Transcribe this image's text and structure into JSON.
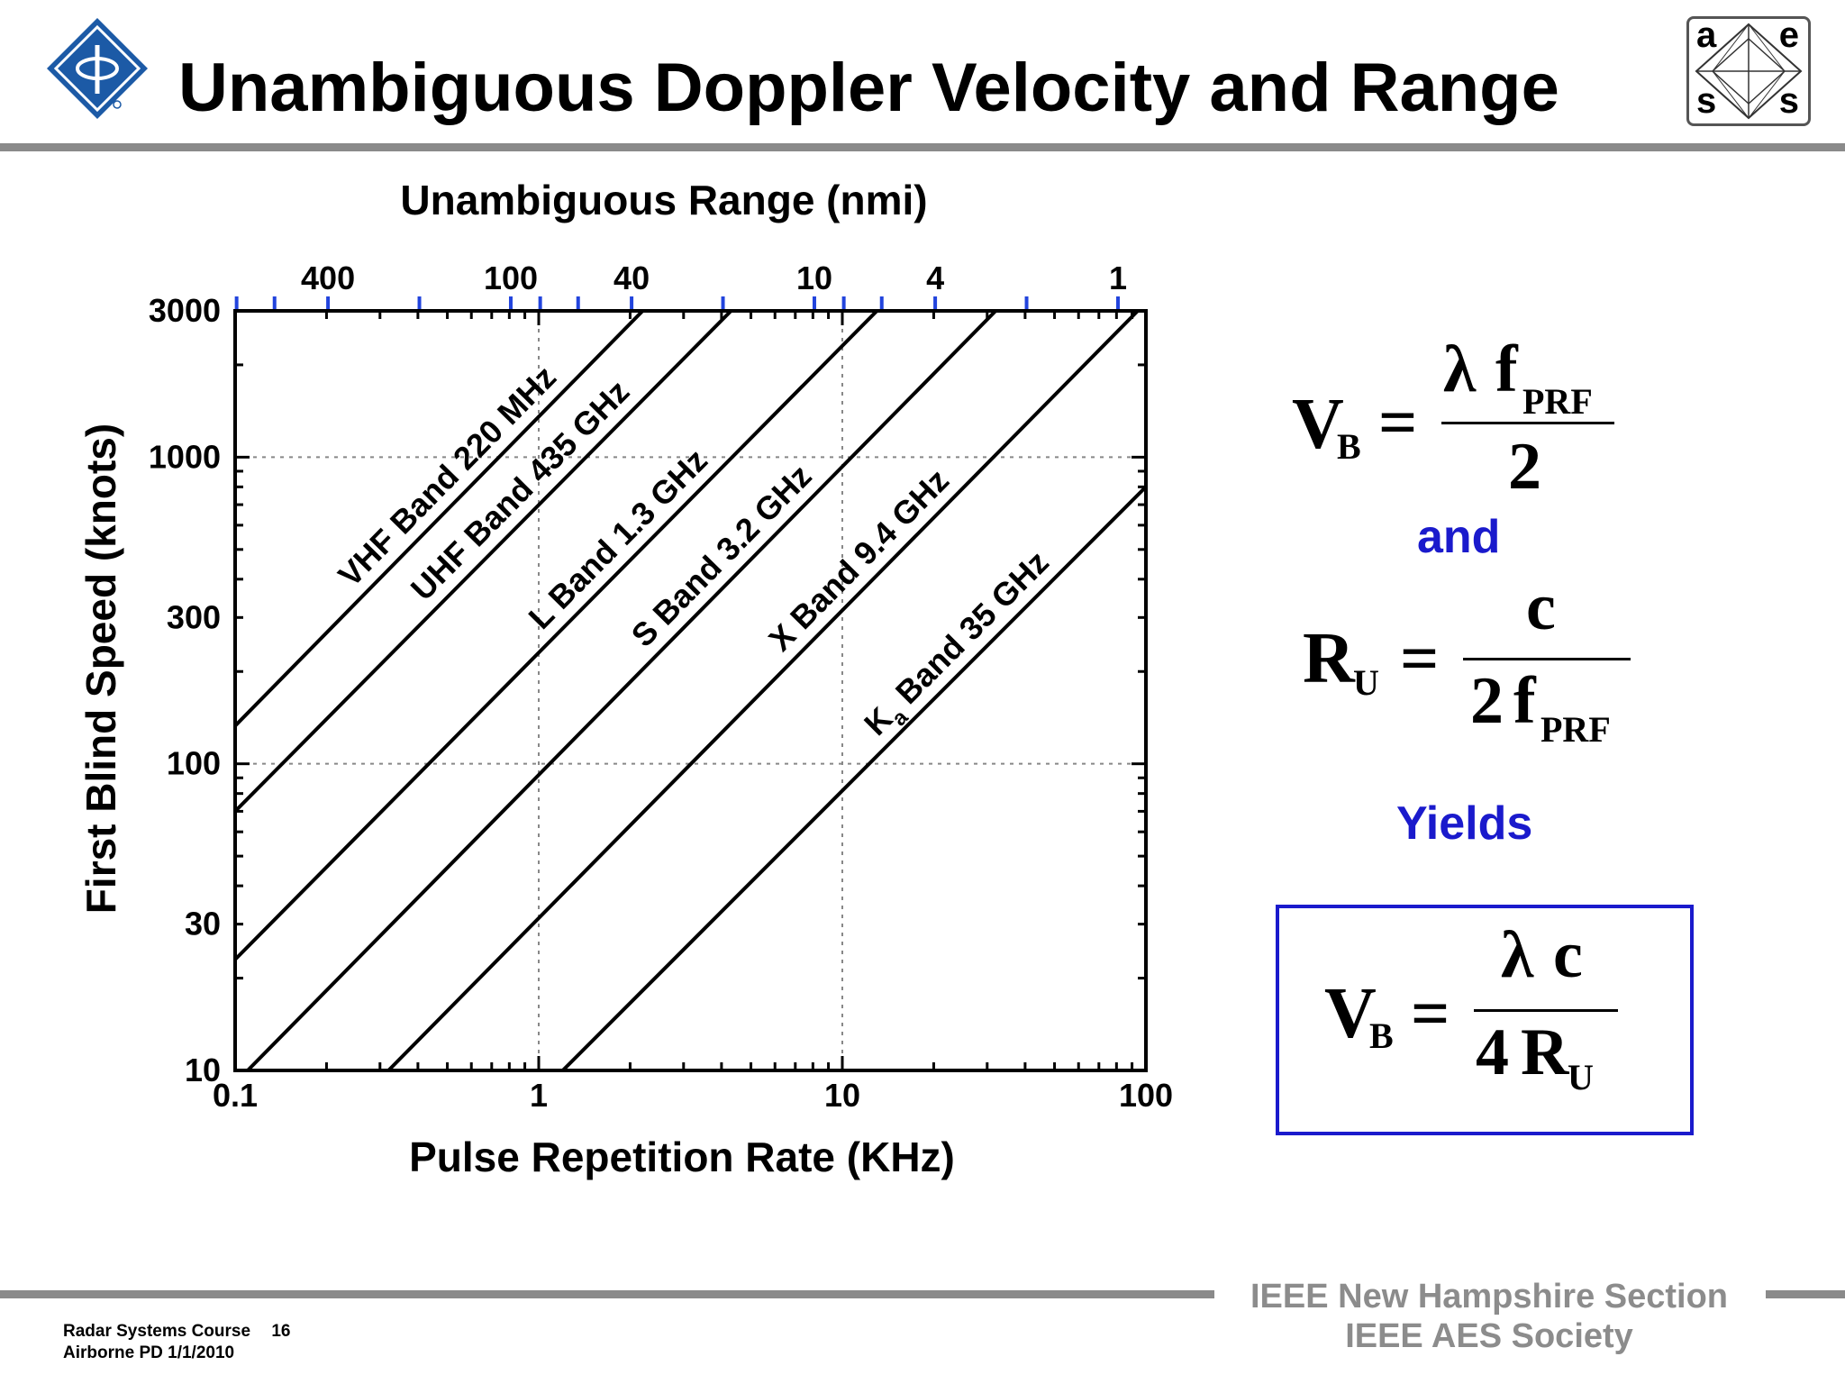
{
  "slide": {
    "title": "Unambiguous Doppler Velocity and Range",
    "left_logo": "ieee-diamond-logo",
    "right_logo": {
      "icon": "aess-logo",
      "letters": [
        "a",
        "e",
        "s",
        "s"
      ]
    }
  },
  "chart_data": {
    "type": "line",
    "top_axis_title": "Unambiguous Range (nmi)",
    "top_tick_labels": [
      "400",
      "100",
      "40",
      "10",
      "4",
      "1"
    ],
    "top_tick_values_nmi": [
      400,
      100,
      40,
      10,
      4,
      1
    ],
    "xlabel": "Pulse Repetition Rate (KHz)",
    "ylabel": "First Blind Speed (knots)",
    "x_scale": "log",
    "y_scale": "log",
    "xlim": [
      0.1,
      100
    ],
    "ylim": [
      10,
      3000
    ],
    "x_tick_labels": [
      "0.1",
      "1",
      "10",
      "100"
    ],
    "x_ticks": [
      0.1,
      1,
      10,
      100
    ],
    "y_tick_labels": [
      "10",
      "30",
      "100",
      "300",
      "1000",
      "3000"
    ],
    "y_ticks": [
      10,
      30,
      100,
      300,
      1000,
      3000
    ],
    "grid": {
      "dashed_x": [
        1,
        10
      ],
      "dashed_y": [
        100,
        1000
      ]
    },
    "series": [
      {
        "name": "VHF Band 220 MHz",
        "label_main": "VHF Band 220 MHz",
        "label_sub": "",
        "label_tail": "",
        "x": [
          0.1,
          2.2
        ],
        "y": [
          133,
          3000
        ]
      },
      {
        "name": "UHF Band 435 GHz",
        "label_main": "UHF Band 435 GHz",
        "label_sub": "",
        "label_tail": "",
        "x": [
          0.1,
          4.3
        ],
        "y": [
          70,
          3000
        ]
      },
      {
        "name": "L Band 1.3 GHz",
        "label_main": "L Band 1.3 GHz",
        "label_sub": "",
        "label_tail": "",
        "x": [
          0.1,
          13
        ],
        "y": [
          23,
          3000
        ]
      },
      {
        "name": "S Band 3.2 GHz",
        "label_main": "S Band 3.2 GHz",
        "label_sub": "",
        "label_tail": "",
        "x": [
          0.11,
          32
        ],
        "y": [
          10,
          3000
        ]
      },
      {
        "name": "X Band 9.4 GHz",
        "label_main": "X Band 9.4 GHz",
        "label_sub": "",
        "label_tail": "",
        "x": [
          0.32,
          94
        ],
        "y": [
          10,
          3000
        ]
      },
      {
        "name": "Ka Band 35 GHz",
        "label_main": "K",
        "label_sub": "a",
        "label_tail": " Band 35 GHz",
        "x": [
          1.2,
          100
        ],
        "y": [
          10,
          800
        ]
      }
    ]
  },
  "equations": {
    "vb_symbol": "V",
    "vb_sub": "B",
    "lambda": "λ",
    "f": "f",
    "prf_sub": "PRF",
    "two": "2",
    "equals": "=",
    "and_word": "and",
    "ru_symbol": "R",
    "ru_sub": "U",
    "c": "c",
    "yields_word": "Yields",
    "four": "4",
    "result_box_color": "#1a1acc"
  },
  "footer": {
    "course": "Radar Systems Course",
    "page": "16",
    "subject": "Airborne PD  1/1/2010",
    "section": "IEEE New Hampshire Section",
    "society": "IEEE AES Society"
  }
}
